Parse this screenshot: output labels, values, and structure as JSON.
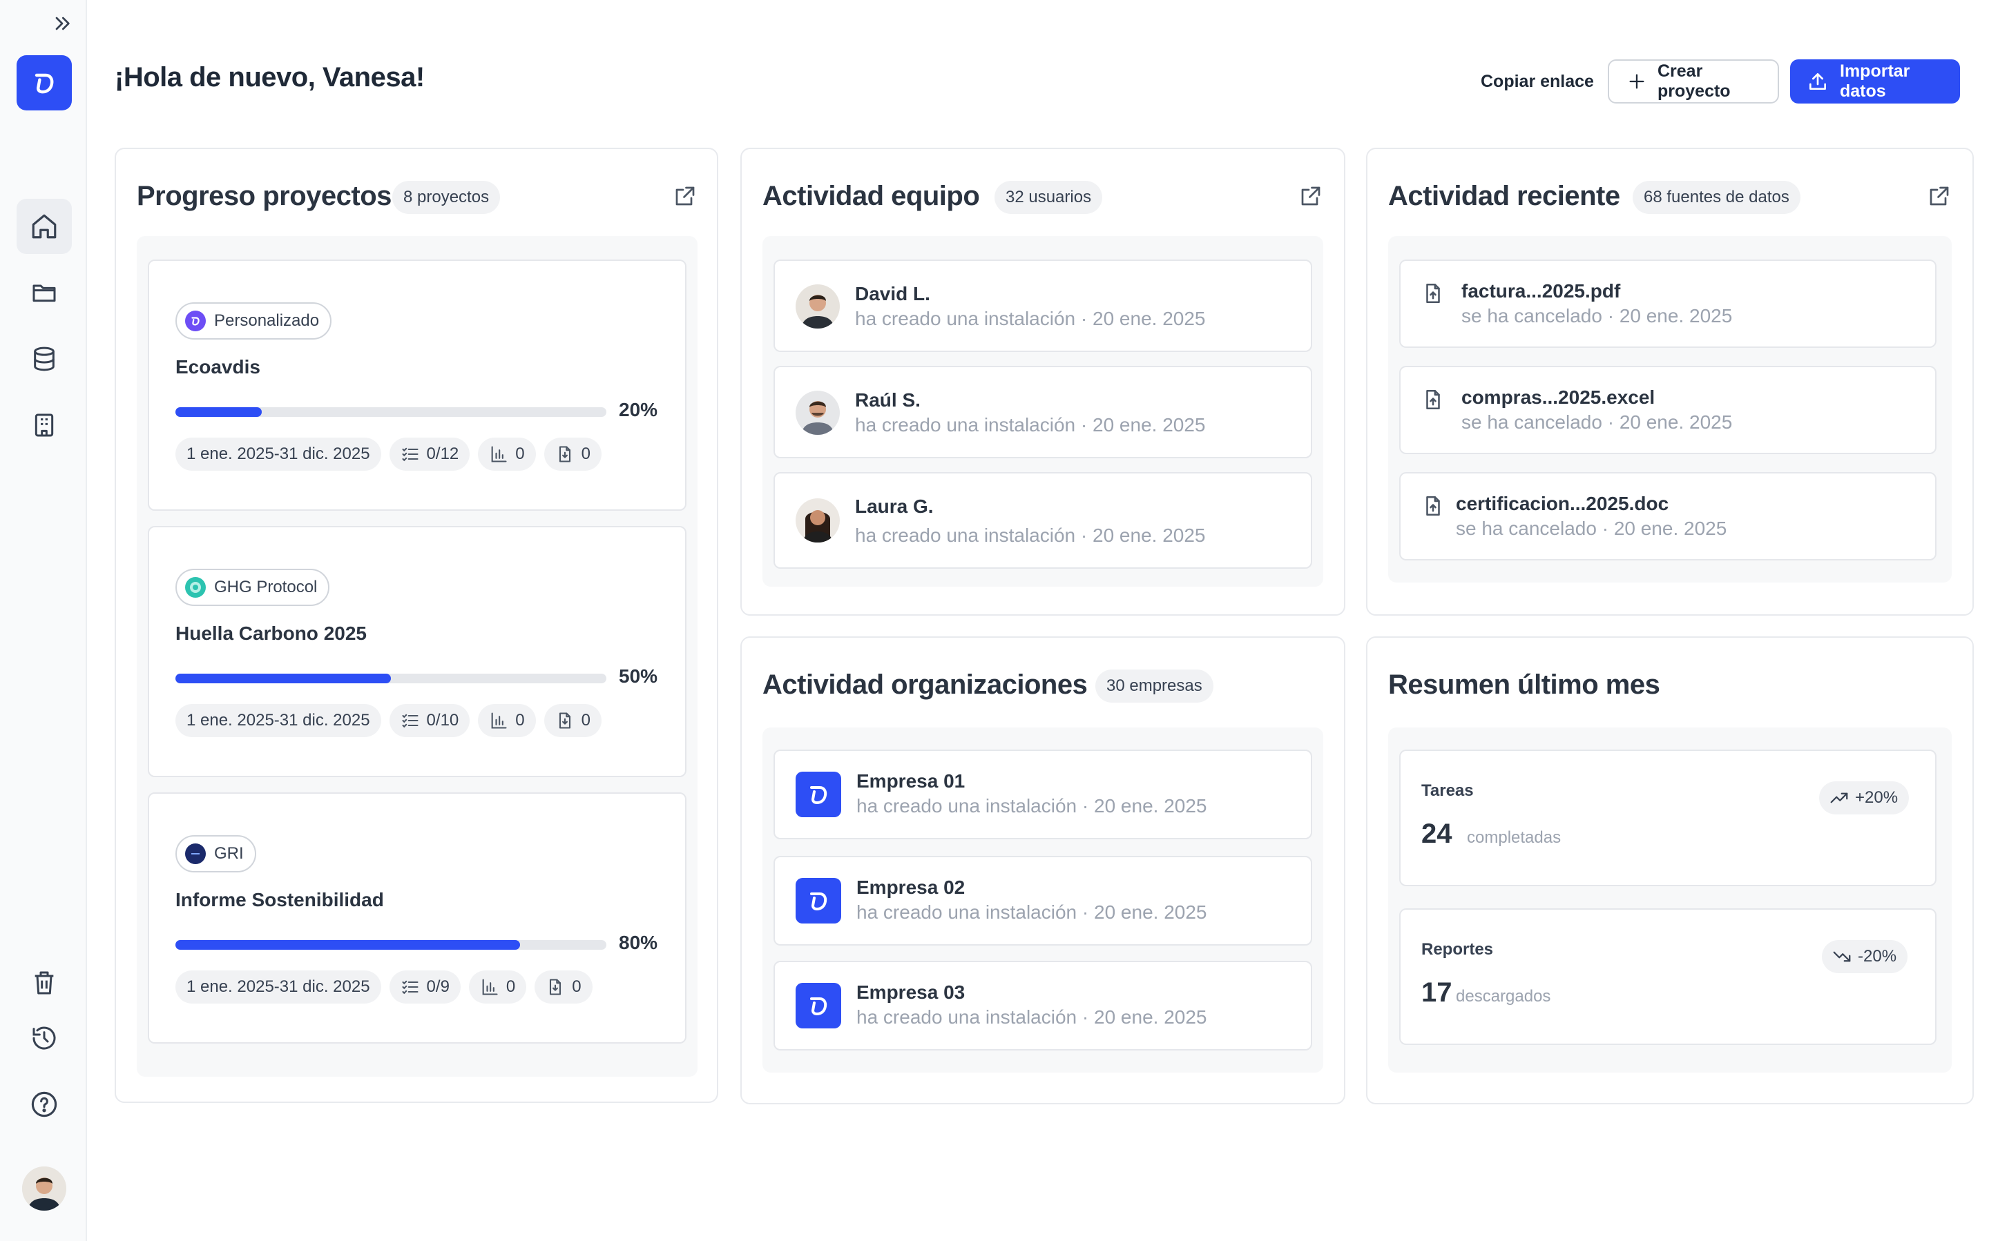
{
  "header": {
    "greeting": "¡Hola de nuevo, Vanesa!",
    "copy_link": "Copiar enlace",
    "create_project": "Crear proyecto",
    "import_data": "Importar datos"
  },
  "colors": {
    "accent": "#2d4ef5",
    "background": "#ffffff",
    "sidebar": "#f9fafb"
  },
  "projects_card": {
    "title": "Progreso proyectos",
    "badge": "8 proyectos",
    "items": [
      {
        "tag": "Personalizado",
        "name": "Ecoavdis",
        "progress": 20,
        "progress_label": "20%",
        "dates": "1 ene. 2025-31 dic. 2025",
        "tasks": "0/12",
        "charts": "0",
        "docs": "0"
      },
      {
        "tag": "GHG Protocol",
        "name": "Huella Carbono 2025",
        "progress": 50,
        "progress_label": "50%",
        "dates": "1 ene. 2025-31 dic. 2025",
        "tasks": "0/10",
        "charts": "0",
        "docs": "0"
      },
      {
        "tag": "GRI",
        "name": "Informe Sostenibilidad",
        "progress": 80,
        "progress_label": "80%",
        "dates": "1 ene. 2025-31 dic. 2025",
        "tasks": "0/9",
        "charts": "0",
        "docs": "0"
      }
    ]
  },
  "team_card": {
    "title": "Actividad equipo",
    "badge": "32 usuarios",
    "items": [
      {
        "name": "David L.",
        "activity": "ha creado una instalación · 20 ene. 2025"
      },
      {
        "name": "Raúl S.",
        "activity": "ha creado una instalación · 20 ene. 2025"
      },
      {
        "name": "Laura G.",
        "activity": "ha creado una instalación · 20 ene. 2025"
      }
    ]
  },
  "recent_card": {
    "title": "Actividad reciente",
    "badge": "68 fuentes de datos",
    "items": [
      {
        "file": "factura...2025.pdf",
        "status": "se ha cancelado · 20 ene. 2025"
      },
      {
        "file": "compras...2025.excel",
        "status": "se ha cancelado · 20 ene. 2025"
      },
      {
        "file": "certificacion...2025.doc",
        "status": "se ha cancelado · 20 ene. 2025"
      }
    ]
  },
  "orgs_card": {
    "title": "Actividad organizaciones",
    "badge": "30 empresas",
    "items": [
      {
        "name": "Empresa 01",
        "activity": "ha creado una instalación · 20 ene. 2025"
      },
      {
        "name": "Empresa 02",
        "activity": "ha creado una instalación · 20 ene. 2025"
      },
      {
        "name": "Empresa 03",
        "activity": "ha creado una instalación · 20 ene. 2025"
      }
    ]
  },
  "summary_card": {
    "title": "Resumen último mes",
    "items": [
      {
        "label": "Tareas",
        "value": "24",
        "unit": "completadas",
        "trend": "+20%",
        "trend_icon": "trending-up-icon"
      },
      {
        "label": "Reportes",
        "value": "17",
        "unit": "descargados",
        "trend": "-20%",
        "trend_icon": "trending-down-icon"
      }
    ]
  }
}
